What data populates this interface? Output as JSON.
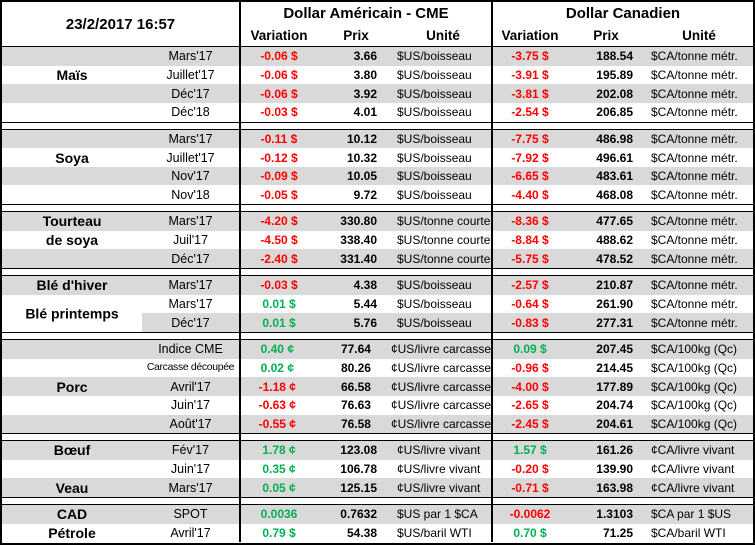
{
  "timestamp": "23/2/2017 16:57",
  "header": {
    "us_group": "Dollar Américain - CME",
    "ca_group": "Dollar Canadien",
    "variation": "Variation",
    "prix": "Prix",
    "unite": "Unité"
  },
  "colors": {
    "positive": "#00B050",
    "negative": "#FF0000",
    "stripe": "#D9D9D9",
    "border": "#000000"
  },
  "sections": [
    {
      "name": "Maïs",
      "rows": [
        {
          "label": "",
          "month": "Mars'17",
          "shade": true,
          "us": {
            "variation": "-0.06 $",
            "trend": "neg",
            "prix": "3.66",
            "unite": "$US/boisseau"
          },
          "ca": {
            "variation": "-3.75 $",
            "trend": "neg",
            "prix": "188.54",
            "unite": "$CA/tonne métr."
          }
        },
        {
          "label": "Maïs",
          "month": "Juillet'17",
          "shade": false,
          "us": {
            "variation": "-0.06 $",
            "trend": "neg",
            "prix": "3.80",
            "unite": "$US/boisseau"
          },
          "ca": {
            "variation": "-3.91 $",
            "trend": "neg",
            "prix": "195.89",
            "unite": "$CA/tonne métr."
          }
        },
        {
          "label": "",
          "month": "Déc'17",
          "shade": true,
          "us": {
            "variation": "-0.06 $",
            "trend": "neg",
            "prix": "3.92",
            "unite": "$US/boisseau"
          },
          "ca": {
            "variation": "-3.81 $",
            "trend": "neg",
            "prix": "202.08",
            "unite": "$CA/tonne métr."
          }
        },
        {
          "label": "",
          "month": "Déc'18",
          "shade": false,
          "us": {
            "variation": "-0.03 $",
            "trend": "neg",
            "prix": "4.01",
            "unite": "$US/boisseau"
          },
          "ca": {
            "variation": "-2.54 $",
            "trend": "neg",
            "prix": "206.85",
            "unite": "$CA/tonne métr."
          }
        }
      ]
    },
    {
      "name": "Soya",
      "rows": [
        {
          "label": "",
          "month": "Mars'17",
          "shade": true,
          "us": {
            "variation": "-0.11 $",
            "trend": "neg",
            "prix": "10.12",
            "unite": "$US/boisseau"
          },
          "ca": {
            "variation": "-7.75 $",
            "trend": "neg",
            "prix": "486.98",
            "unite": "$CA/tonne métr."
          }
        },
        {
          "label": "Soya",
          "month": "Juillet'17",
          "shade": false,
          "us": {
            "variation": "-0.12 $",
            "trend": "neg",
            "prix": "10.32",
            "unite": "$US/boisseau"
          },
          "ca": {
            "variation": "-7.92 $",
            "trend": "neg",
            "prix": "496.61",
            "unite": "$CA/tonne métr."
          }
        },
        {
          "label": "",
          "month": "Nov'17",
          "shade": true,
          "us": {
            "variation": "-0.09 $",
            "trend": "neg",
            "prix": "10.05",
            "unite": "$US/boisseau"
          },
          "ca": {
            "variation": "-6.65 $",
            "trend": "neg",
            "prix": "483.61",
            "unite": "$CA/tonne métr."
          }
        },
        {
          "label": "",
          "month": "Nov'18",
          "shade": false,
          "us": {
            "variation": "-0.05 $",
            "trend": "neg",
            "prix": "9.72",
            "unite": "$US/boisseau"
          },
          "ca": {
            "variation": "-4.40 $",
            "trend": "neg",
            "prix": "468.08",
            "unite": "$CA/tonne métr."
          }
        }
      ]
    },
    {
      "name": "Tourteau de soya",
      "rows": [
        {
          "label": "Tourteau",
          "month": "Mars'17",
          "shade": true,
          "us": {
            "variation": "-4.20 $",
            "trend": "neg",
            "prix": "330.80",
            "unite": "$US/tonne courte"
          },
          "ca": {
            "variation": "-8.36 $",
            "trend": "neg",
            "prix": "477.65",
            "unite": "$CA/tonne métr."
          }
        },
        {
          "label": "de soya",
          "month": "Juil'17",
          "shade": false,
          "us": {
            "variation": "-4.50 $",
            "trend": "neg",
            "prix": "338.40",
            "unite": "$US/tonne courte"
          },
          "ca": {
            "variation": "-8.84 $",
            "trend": "neg",
            "prix": "488.62",
            "unite": "$CA/tonne métr."
          }
        },
        {
          "label": "",
          "month": "Déc'17",
          "shade": true,
          "us": {
            "variation": "-2.40 $",
            "trend": "neg",
            "prix": "331.40",
            "unite": "$US/tonne courte"
          },
          "ca": {
            "variation": "-5.75 $",
            "trend": "neg",
            "prix": "478.52",
            "unite": "$CA/tonne métr."
          }
        }
      ]
    },
    {
      "name": "Blé",
      "rows": [
        {
          "label": "Blé d'hiver",
          "month": "Mars'17",
          "shade": true,
          "us": {
            "variation": "-0.03 $",
            "trend": "neg",
            "prix": "4.38",
            "unite": "$US/boisseau"
          },
          "ca": {
            "variation": "-2.57 $",
            "trend": "neg",
            "prix": "210.87",
            "unite": "$CA/tonne métr."
          }
        },
        {
          "label": "Blé printemps",
          "label_class": "span2",
          "month": "Mars'17",
          "shade": false,
          "us": {
            "variation": "0.01 $",
            "trend": "pos",
            "prix": "5.44",
            "unite": "$US/boisseau"
          },
          "ca": {
            "variation": "-0.64 $",
            "trend": "neg",
            "prix": "261.90",
            "unite": "$CA/tonne métr."
          }
        },
        {
          "label": "",
          "label_white": true,
          "month": "Déc'17",
          "shade": true,
          "us": {
            "variation": "0.01 $",
            "trend": "pos",
            "prix": "5.76",
            "unite": "$US/boisseau"
          },
          "ca": {
            "variation": "-0.83 $",
            "trend": "neg",
            "prix": "277.31",
            "unite": "$CA/tonne métr."
          }
        }
      ]
    },
    {
      "name": "Porc",
      "rows": [
        {
          "label": "",
          "month": "Indice CME",
          "shade": true,
          "us": {
            "variation": "0.40 ¢",
            "trend": "pos",
            "prix": "77.64",
            "unite": "¢US/livre carcasse"
          },
          "ca": {
            "variation": "0.09 $",
            "trend": "pos",
            "prix": "207.45",
            "unite": "$CA/100kg (Qc)"
          }
        },
        {
          "label": "",
          "month": "Carcasse découpée",
          "month_class": "small",
          "shade": false,
          "us": {
            "variation": "0.02 ¢",
            "trend": "pos",
            "prix": "80.26",
            "unite": "¢US/livre carcasse"
          },
          "ca": {
            "variation": "-0.96 $",
            "trend": "neg",
            "prix": "214.45",
            "unite": "$CA/100kg (Qc)"
          }
        },
        {
          "label": "Porc",
          "month": "Avril'17",
          "shade": true,
          "us": {
            "variation": "-1.18 ¢",
            "trend": "neg",
            "prix": "66.58",
            "unite": "¢US/livre carcasse"
          },
          "ca": {
            "variation": "-4.00 $",
            "trend": "neg",
            "prix": "177.89",
            "unite": "$CA/100kg (Qc)"
          }
        },
        {
          "label": "",
          "month": "Juin'17",
          "shade": false,
          "us": {
            "variation": "-0.63 ¢",
            "trend": "neg",
            "prix": "76.63",
            "unite": "¢US/livre carcasse"
          },
          "ca": {
            "variation": "-2.65 $",
            "trend": "neg",
            "prix": "204.74",
            "unite": "$CA/100kg (Qc)"
          }
        },
        {
          "label": "",
          "month": "Août'17",
          "shade": true,
          "us": {
            "variation": "-0.55 ¢",
            "trend": "neg",
            "prix": "76.58",
            "unite": "¢US/livre carcasse"
          },
          "ca": {
            "variation": "-2.45 $",
            "trend": "neg",
            "prix": "204.61",
            "unite": "$CA/100kg (Qc)"
          }
        }
      ]
    },
    {
      "name": "Bœuf / Veau",
      "rows": [
        {
          "label": "Bœuf",
          "month": "Fév'17",
          "shade": true,
          "us": {
            "variation": "1.78 ¢",
            "trend": "pos",
            "prix": "123.08",
            "unite": "¢US/livre vivant"
          },
          "ca": {
            "variation": "1.57 $",
            "trend": "pos",
            "prix": "161.26",
            "unite": "¢CA/livre vivant"
          }
        },
        {
          "label": "",
          "month": "Juin'17",
          "shade": false,
          "us": {
            "variation": "0.35 ¢",
            "trend": "pos",
            "prix": "106.78",
            "unite": "¢US/livre vivant"
          },
          "ca": {
            "variation": "-0.20 $",
            "trend": "neg",
            "prix": "139.90",
            "unite": "¢CA/livre vivant"
          }
        },
        {
          "label": "Veau",
          "month": "Mars'17",
          "shade": true,
          "us": {
            "variation": "0.05 ¢",
            "trend": "pos",
            "prix": "125.15",
            "unite": "¢US/livre vivant"
          },
          "ca": {
            "variation": "-0.71 $",
            "trend": "neg",
            "prix": "163.98",
            "unite": "¢CA/livre vivant"
          }
        }
      ]
    },
    {
      "name": "CAD / Pétrole",
      "rows": [
        {
          "label": "CAD",
          "month": "SPOT",
          "shade": true,
          "us": {
            "variation": "0.0036",
            "trend": "pos",
            "prix": "0.7632",
            "unite": "$US par 1 $CA"
          },
          "ca": {
            "variation": "-0.0062",
            "trend": "neg",
            "prix": "1.3103",
            "unite": "$CA par 1 $US"
          }
        },
        {
          "label": "Pétrole",
          "month": "Avril'17",
          "shade": false,
          "us": {
            "variation": "0.79 $",
            "trend": "pos",
            "prix": "54.38",
            "unite": "$US/baril WTI"
          },
          "ca": {
            "variation": "0.70 $",
            "trend": "pos",
            "prix": "71.25",
            "unite": "$CA/baril WTI"
          }
        }
      ]
    }
  ]
}
